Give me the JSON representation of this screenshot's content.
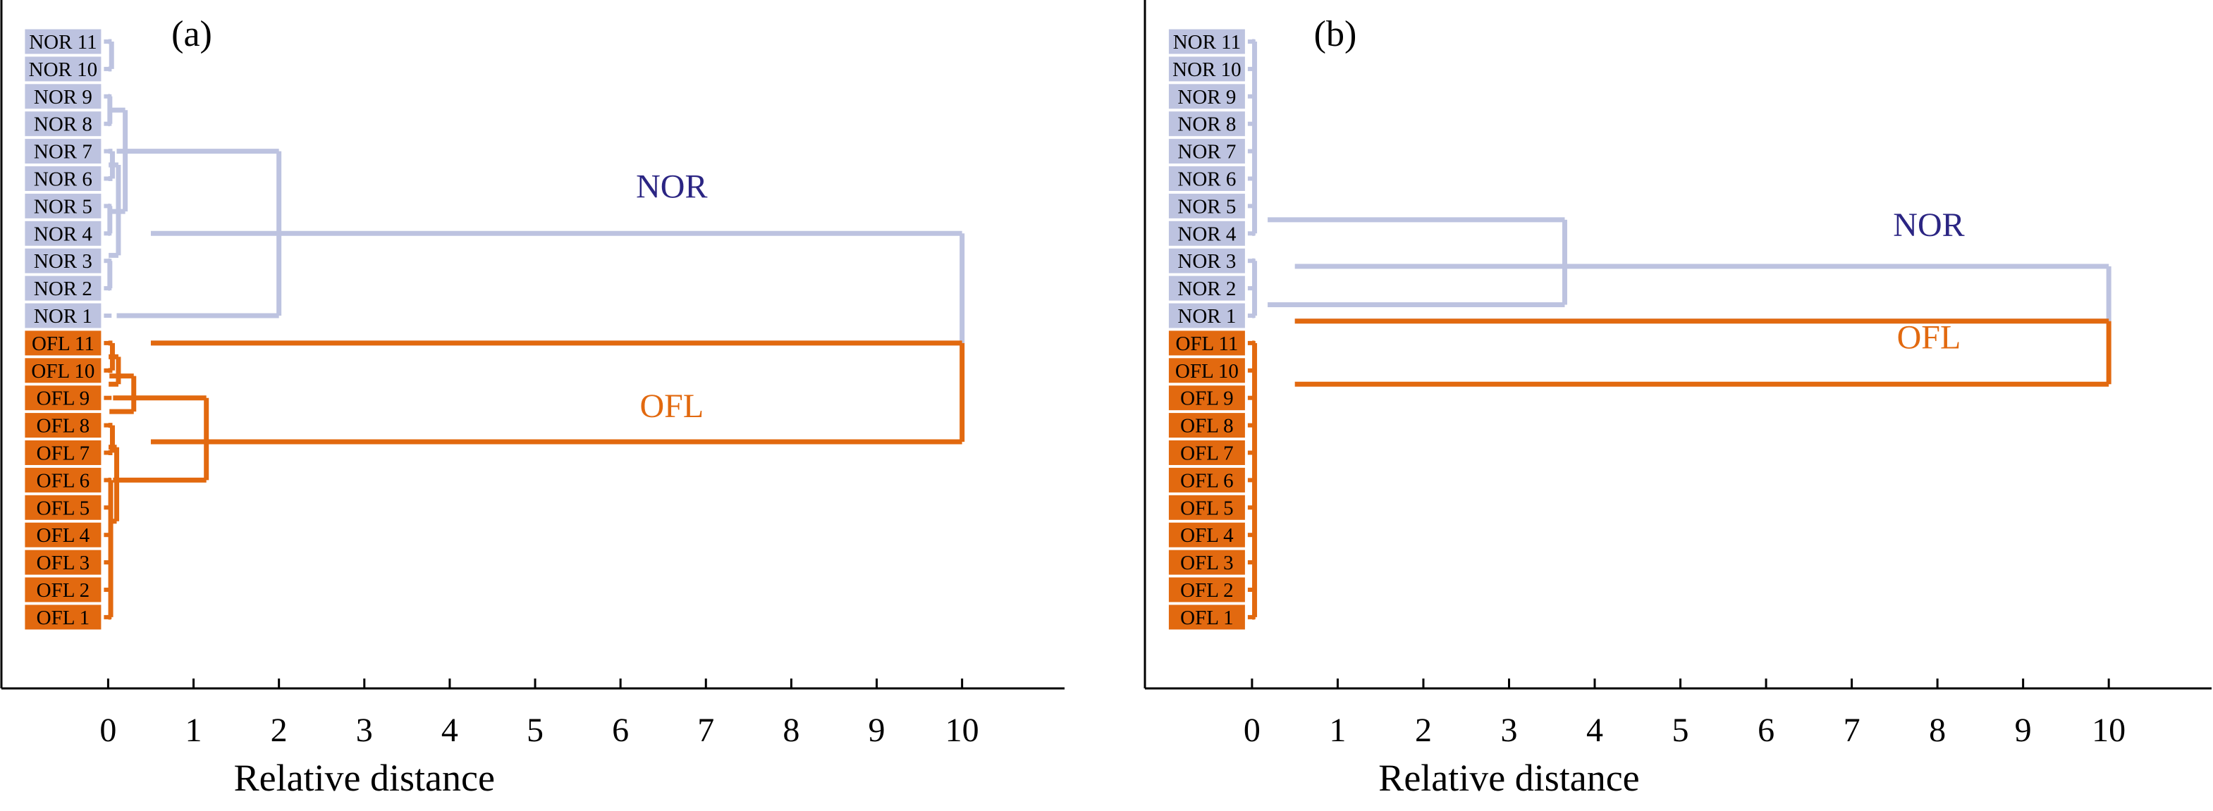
{
  "chart_data": [
    {
      "type": "dendrogram",
      "panel_label": "(a)",
      "xlabel": "Relative distance",
      "xlim": [
        -1.25,
        11.2
      ],
      "xticks": [
        0,
        1,
        2,
        3,
        4,
        5,
        6,
        7,
        8,
        9,
        10
      ],
      "leaves": [
        {
          "label": "NOR 11",
          "group": "NOR"
        },
        {
          "label": "NOR 10",
          "group": "NOR"
        },
        {
          "label": "NOR 9",
          "group": "NOR"
        },
        {
          "label": "NOR 8",
          "group": "NOR"
        },
        {
          "label": "NOR 7",
          "group": "NOR"
        },
        {
          "label": "NOR 6",
          "group": "NOR"
        },
        {
          "label": "NOR 5",
          "group": "NOR"
        },
        {
          "label": "NOR 4",
          "group": "NOR"
        },
        {
          "label": "NOR 3",
          "group": "NOR"
        },
        {
          "label": "NOR 2",
          "group": "NOR"
        },
        {
          "label": "NOR 1",
          "group": "NOR"
        },
        {
          "label": "OFL 11",
          "group": "OFL"
        },
        {
          "label": "OFL 10",
          "group": "OFL"
        },
        {
          "label": "OFL 9",
          "group": "OFL"
        },
        {
          "label": "OFL 8",
          "group": "OFL"
        },
        {
          "label": "OFL 7",
          "group": "OFL"
        },
        {
          "label": "OFL 6",
          "group": "OFL"
        },
        {
          "label": "OFL 5",
          "group": "OFL"
        },
        {
          "label": "OFL 4",
          "group": "OFL"
        },
        {
          "label": "OFL 3",
          "group": "OFL"
        },
        {
          "label": "OFL 2",
          "group": "OFL"
        },
        {
          "label": "OFL 1",
          "group": "OFL"
        }
      ],
      "links": [
        {
          "group": "NOR",
          "x": 0.04,
          "from": 0,
          "to": 1
        },
        {
          "group": "NOR",
          "x": 0.02,
          "from": 2,
          "to": 3
        },
        {
          "group": "NOR",
          "x": 0.05,
          "from": 4,
          "to": 5
        },
        {
          "group": "NOR",
          "x": 0.02,
          "from": 6,
          "to": 7
        },
        {
          "group": "NOR",
          "x": 0.02,
          "from": 8,
          "to": 9
        },
        {
          "group": "NOR",
          "x": 0.12,
          "from": 4.5,
          "to": 7.8
        },
        {
          "group": "NOR",
          "x": 0.2,
          "from": 2.5,
          "to": 6.2
        },
        {
          "group": "NOR",
          "x": 2.0,
          "from": 4.0,
          "to": 10
        },
        {
          "group": "OFL",
          "x": 0.05,
          "from": 11,
          "to": 12
        },
        {
          "group": "OFL",
          "x": 0.12,
          "from": 11.5,
          "to": 12.5
        },
        {
          "group": "OFL",
          "x": 0.3,
          "from": 12.2,
          "to": 13.5
        },
        {
          "group": "OFL",
          "x": 0.05,
          "from": 14,
          "to": 15
        },
        {
          "group": "OFL",
          "x": 0.1,
          "from": 14.8,
          "to": 17.5
        },
        {
          "group": "OFL",
          "x": 0.03,
          "from": 16,
          "to": 21
        },
        {
          "group": "OFL",
          "x": 1.15,
          "from": 13.0,
          "to": 16.0
        },
        {
          "group": "NOR",
          "x": 10.0,
          "from": 7.0,
          "to": 11.0
        },
        {
          "group": "OFL",
          "x": 10.0,
          "from": 11.0,
          "to": 14.6
        }
      ],
      "cluster_labels": [
        {
          "text": "NOR",
          "group": "NOR",
          "x": 6.6,
          "y": 5.7
        },
        {
          "text": "OFL",
          "group": "OFL",
          "x": 6.6,
          "y": 13.7
        }
      ],
      "colors": {
        "NOR": "#bdc3e0",
        "OFL": "#e2690f",
        "NOR_text": "#2b2583",
        "OFL_text": "#e2690f"
      }
    },
    {
      "type": "dendrogram",
      "panel_label": "(b)",
      "xlabel": "Relative distance",
      "xlim": [
        -1.25,
        11.2
      ],
      "xticks": [
        0,
        1,
        2,
        3,
        4,
        5,
        6,
        7,
        8,
        9,
        10
      ],
      "leaves": [
        {
          "label": "NOR 11",
          "group": "NOR"
        },
        {
          "label": "NOR 10",
          "group": "NOR"
        },
        {
          "label": "NOR 9",
          "group": "NOR"
        },
        {
          "label": "NOR 8",
          "group": "NOR"
        },
        {
          "label": "NOR 7",
          "group": "NOR"
        },
        {
          "label": "NOR 6",
          "group": "NOR"
        },
        {
          "label": "NOR 5",
          "group": "NOR"
        },
        {
          "label": "NOR 4",
          "group": "NOR"
        },
        {
          "label": "NOR 3",
          "group": "NOR"
        },
        {
          "label": "NOR 2",
          "group": "NOR"
        },
        {
          "label": "NOR 1",
          "group": "NOR"
        },
        {
          "label": "OFL 11",
          "group": "OFL"
        },
        {
          "label": "OFL 10",
          "group": "OFL"
        },
        {
          "label": "OFL 9",
          "group": "OFL"
        },
        {
          "label": "OFL 8",
          "group": "OFL"
        },
        {
          "label": "OFL 7",
          "group": "OFL"
        },
        {
          "label": "OFL 6",
          "group": "OFL"
        },
        {
          "label": "OFL 5",
          "group": "OFL"
        },
        {
          "label": "OFL 4",
          "group": "OFL"
        },
        {
          "label": "OFL 3",
          "group": "OFL"
        },
        {
          "label": "OFL 2",
          "group": "OFL"
        },
        {
          "label": "OFL 1",
          "group": "OFL"
        }
      ],
      "links": [
        {
          "group": "NOR",
          "x": 0.03,
          "from": 0,
          "to": 7
        },
        {
          "group": "NOR",
          "x": 0.03,
          "from": 8,
          "to": 10
        },
        {
          "group": "NOR",
          "x": 3.65,
          "from": 6.5,
          "to": 9.6
        },
        {
          "group": "OFL",
          "x": 0.03,
          "from": 11,
          "to": 21
        },
        {
          "group": "NOR",
          "x": 10.0,
          "from": 8.2,
          "to": 10.2
        },
        {
          "group": "OFL",
          "x": 10.0,
          "from": 10.2,
          "to": 12.5
        }
      ],
      "cluster_labels": [
        {
          "text": "NOR",
          "group": "NOR",
          "x": 7.9,
          "y": 7.1
        },
        {
          "text": "OFL",
          "group": "OFL",
          "x": 7.9,
          "y": 11.2
        }
      ],
      "colors": {
        "NOR": "#bdc3e0",
        "OFL": "#e2690f",
        "NOR_text": "#2b2583",
        "OFL_text": "#e2690f"
      }
    }
  ]
}
